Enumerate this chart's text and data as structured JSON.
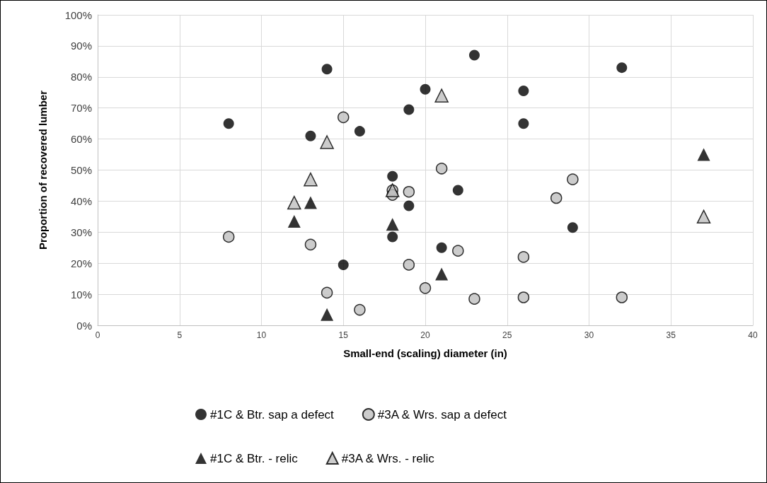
{
  "chart_data": {
    "type": "scatter",
    "xlabel": "Small-end (scaling) diameter (in)",
    "ylabel": "Proportion of recovered lumber",
    "xlim": [
      0,
      40
    ],
    "xticks": [
      0,
      5,
      10,
      15,
      20,
      25,
      30,
      35,
      40
    ],
    "ylim": [
      0,
      100
    ],
    "yticks": [
      {
        "value": 0,
        "label": "0%"
      },
      {
        "value": 10,
        "label": "10%"
      },
      {
        "value": 20,
        "label": "20%"
      },
      {
        "value": 30,
        "label": "30%"
      },
      {
        "value": 40,
        "label": "40%"
      },
      {
        "value": 50,
        "label": "50%"
      },
      {
        "value": 60,
        "label": "60%"
      },
      {
        "value": 70,
        "label": "70%"
      },
      {
        "value": 80,
        "label": "80%"
      },
      {
        "value": 90,
        "label": "90%"
      },
      {
        "value": 100,
        "label": "100%"
      }
    ],
    "grid": true,
    "legend": "bottom",
    "series": [
      {
        "name": "#1C & Btr. sap a defect",
        "color": "#000000",
        "marker": "circle",
        "x": [
          8,
          13,
          14,
          15,
          16,
          18,
          18,
          19,
          19,
          20,
          21,
          22,
          23,
          26,
          26,
          29,
          32
        ],
        "values": [
          65,
          61,
          82.5,
          19.5,
          62.5,
          48,
          28.5,
          69.5,
          38.5,
          76,
          25,
          43.5,
          87,
          75.5,
          65,
          31.5,
          83
        ]
      },
      {
        "name": "#3A & Wrs. sap a defect",
        "color": "#bfbfbf",
        "marker": "circle",
        "x": [
          8,
          13,
          14,
          15,
          16,
          18,
          18,
          19,
          19,
          20,
          21,
          22,
          23,
          26,
          26,
          28,
          29,
          32
        ],
        "values": [
          28.5,
          26,
          10.5,
          67,
          5,
          43.5,
          42,
          43,
          19.5,
          12,
          50.5,
          24,
          8.5,
          22,
          9,
          41,
          47,
          9
        ]
      },
      {
        "name": "#1C & Btr. - relic",
        "color": "#000000",
        "marker": "triangle",
        "x": [
          12,
          13,
          14,
          18,
          21,
          37
        ],
        "values": [
          33.5,
          39.5,
          3.5,
          32.5,
          16.5,
          55
        ]
      },
      {
        "name": "#3A & Wrs. - relic",
        "color": "#bfbfbf",
        "marker": "triangle",
        "x": [
          12,
          13,
          14,
          18,
          21,
          37
        ],
        "values": [
          39.5,
          47,
          59,
          43.5,
          74,
          35
        ]
      }
    ]
  }
}
